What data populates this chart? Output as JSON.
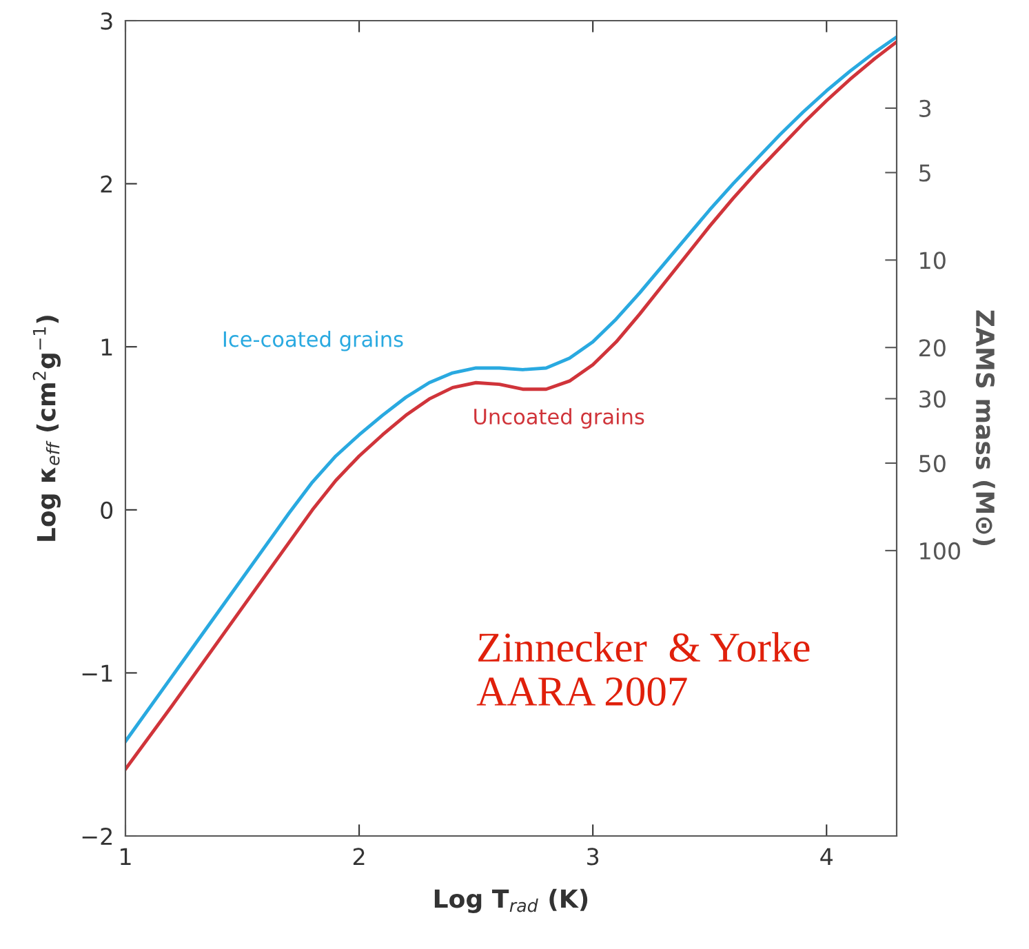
{
  "chart_data": {
    "type": "line",
    "xlabel": "Log T$_{rad}$ (K)",
    "ylabel": "Log κ$_{eff}$ (cm$^{2}$g$^{−1}$)",
    "y2label": "ZAMS mass (M⊙)",
    "xlim": [
      1,
      4.3
    ],
    "xticks": [
      1,
      2,
      3,
      4
    ],
    "ylim": [
      -2,
      3
    ],
    "yticks": [
      {
        "value": -2,
        "label": "−2"
      },
      {
        "value": -1,
        "label": "−1"
      },
      0,
      1,
      2,
      3
    ],
    "y2lim": [
      960,
      1.5
    ],
    "y2ticks": [
      3,
      5,
      10,
      20,
      30,
      50,
      100
    ],
    "log": "y2",
    "x": [
      1.0,
      1.2,
      1.4,
      1.6,
      1.7,
      1.8,
      1.9,
      2.0,
      2.1,
      2.2,
      2.3,
      2.4,
      2.5,
      2.6,
      2.7,
      2.8,
      2.9,
      3.0,
      3.1,
      3.2,
      3.3,
      3.4,
      3.5,
      3.6,
      3.7,
      3.8,
      3.9,
      4.0,
      4.1,
      4.2,
      4.3
    ],
    "series": [
      {
        "name": "Ice-coated grains",
        "color": "#29a9e0",
        "values": [
          -1.42,
          -1.02,
          -0.62,
          -0.22,
          -0.02,
          0.17,
          0.33,
          0.46,
          0.58,
          0.69,
          0.78,
          0.84,
          0.87,
          0.87,
          0.86,
          0.87,
          0.93,
          1.03,
          1.17,
          1.33,
          1.5,
          1.67,
          1.84,
          2.0,
          2.15,
          2.3,
          2.44,
          2.57,
          2.69,
          2.8,
          2.9
        ]
      },
      {
        "name": "Uncoated grains",
        "color": "#d0343a",
        "values": [
          -1.59,
          -1.2,
          -0.8,
          -0.4,
          -0.2,
          0.0,
          0.18,
          0.33,
          0.46,
          0.58,
          0.68,
          0.75,
          0.78,
          0.77,
          0.74,
          0.74,
          0.79,
          0.89,
          1.03,
          1.2,
          1.38,
          1.56,
          1.74,
          1.91,
          2.07,
          2.22,
          2.37,
          2.51,
          2.64,
          2.76,
          2.87
        ]
      }
    ],
    "grid": false,
    "legend": false,
    "marker": "none",
    "line_style": "solid",
    "annotations": [
      "Zinnecker  & Yorke\nAARA 2007"
    ]
  }
}
